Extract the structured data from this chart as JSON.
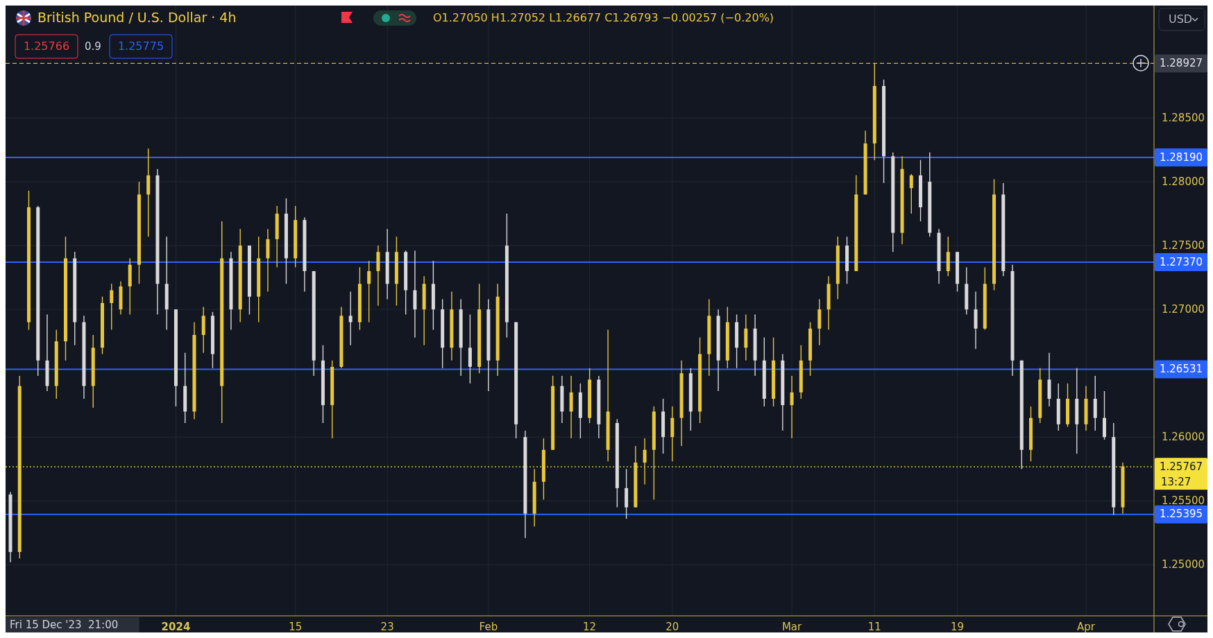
{
  "chart_data": {
    "type": "candlestick",
    "title": "British Pound / U.S. Dollar · 4h",
    "annotations": [
      "O1.27050 H1.27052 L1.26677 C1.26793 −0.00257 (−0.20%)",
      "1.25766",
      "0.9",
      "1.25775",
      "USD",
      "13:27",
      "Fri 15 Dec '23  21:00"
    ],
    "categories": [
      null,
      null,
      null,
      null,
      null,
      null,
      null,
      null,
      null,
      null,
      null,
      null,
      null,
      null,
      null,
      null,
      null,
      null,
      "2024",
      null,
      null,
      null,
      null,
      null,
      null,
      null,
      null,
      null,
      null,
      null,
      null,
      "15",
      null,
      null,
      null,
      null,
      null,
      null,
      null,
      null,
      null,
      "23",
      null,
      null,
      null,
      null,
      null,
      null,
      null,
      null,
      null,
      null,
      "Feb",
      null,
      null,
      null,
      null,
      null,
      null,
      null,
      null,
      null,
      null,
      "12",
      null,
      null,
      null,
      null,
      null,
      null,
      null,
      null,
      "20",
      null,
      null,
      null,
      null,
      null,
      null,
      null,
      null,
      null,
      null,
      null,
      null,
      "Mar",
      null,
      null,
      null,
      null,
      null,
      null,
      null,
      null,
      "11",
      null,
      null,
      null,
      null,
      null,
      null,
      null,
      null,
      "19",
      null,
      null,
      null,
      null,
      null,
      null,
      null,
      null,
      null,
      null,
      null,
      null,
      null,
      "Apr",
      null,
      null,
      null,
      null
    ],
    "ohlc": [
      [
        1.2555,
        1.2557,
        1.2502,
        1.251
      ],
      [
        1.251,
        1.2648,
        1.2505,
        1.264
      ],
      [
        1.269,
        1.2793,
        1.2684,
        1.278
      ],
      [
        1.278,
        1.2781,
        1.2648,
        1.266
      ],
      [
        1.266,
        1.2696,
        1.2636,
        1.264
      ],
      [
        1.264,
        1.2684,
        1.263,
        1.2675
      ],
      [
        1.2675,
        1.2757,
        1.266,
        1.274
      ],
      [
        1.274,
        1.2745,
        1.2672,
        1.269
      ],
      [
        1.269,
        1.2695,
        1.263,
        1.264
      ],
      [
        1.264,
        1.268,
        1.2623,
        1.267
      ],
      [
        1.267,
        1.271,
        1.2665,
        1.2705
      ],
      [
        1.2705,
        1.272,
        1.2684,
        1.2715
      ],
      [
        1.27,
        1.2722,
        1.2696,
        1.2718
      ],
      [
        1.2718,
        1.274,
        1.2696,
        1.2735
      ],
      [
        1.2735,
        1.28,
        1.272,
        1.279
      ],
      [
        1.279,
        1.2826,
        1.2757,
        1.2805
      ],
      [
        1.2805,
        1.281,
        1.2696,
        1.272
      ],
      [
        1.272,
        1.2757,
        1.2684,
        1.27
      ],
      [
        1.27,
        1.27,
        1.2624,
        1.264
      ],
      [
        1.264,
        1.2666,
        1.2611,
        1.262
      ],
      [
        1.262,
        1.269,
        1.2614,
        1.268
      ],
      [
        1.268,
        1.2702,
        1.2666,
        1.2695
      ],
      [
        1.2695,
        1.2698,
        1.2654,
        1.2665
      ],
      [
        1.264,
        1.2769,
        1.2611,
        1.274
      ],
      [
        1.274,
        1.2745,
        1.2684,
        1.27
      ],
      [
        1.27,
        1.2763,
        1.269,
        1.275
      ],
      [
        1.275,
        1.275,
        1.2696,
        1.271
      ],
      [
        1.271,
        1.2757,
        1.269,
        1.274
      ],
      [
        1.274,
        1.2763,
        1.2714,
        1.2755
      ],
      [
        1.2755,
        1.2781,
        1.2733,
        1.2775
      ],
      [
        1.2775,
        1.2787,
        1.272,
        1.274
      ],
      [
        1.274,
        1.2781,
        1.2733,
        1.277
      ],
      [
        1.277,
        1.2772,
        1.2714,
        1.273
      ],
      [
        1.273,
        1.273,
        1.2648,
        1.266
      ],
      [
        1.266,
        1.2672,
        1.2611,
        1.2625
      ],
      [
        1.2625,
        1.266,
        1.2599,
        1.2655
      ],
      [
        1.2655,
        1.2702,
        1.2654,
        1.2695
      ],
      [
        1.2695,
        1.2714,
        1.2672,
        1.269
      ],
      [
        1.269,
        1.2733,
        1.2684,
        1.272
      ],
      [
        1.272,
        1.2738,
        1.269,
        1.273
      ],
      [
        1.273,
        1.275,
        1.2703,
        1.2745
      ],
      [
        1.2745,
        1.2763,
        1.2708,
        1.272
      ],
      [
        1.272,
        1.2757,
        1.2703,
        1.2745
      ],
      [
        1.2745,
        1.2746,
        1.2696,
        1.2715
      ],
      [
        1.2715,
        1.2746,
        1.2678,
        1.27
      ],
      [
        1.27,
        1.2726,
        1.2672,
        1.272
      ],
      [
        1.272,
        1.2738,
        1.2684,
        1.27
      ],
      [
        1.27,
        1.2708,
        1.2654,
        1.267
      ],
      [
        1.267,
        1.2714,
        1.266,
        1.27
      ],
      [
        1.27,
        1.2708,
        1.2648,
        1.267
      ],
      [
        1.267,
        1.2696,
        1.2642,
        1.2655
      ],
      [
        1.2655,
        1.272,
        1.265,
        1.27
      ],
      [
        1.27,
        1.2708,
        1.2636,
        1.266
      ],
      [
        1.266,
        1.272,
        1.2648,
        1.271
      ],
      [
        1.275,
        1.2775,
        1.2678,
        1.269
      ],
      [
        1.269,
        1.269,
        1.2599,
        1.261
      ],
      [
        1.26,
        1.2605,
        1.2521,
        1.254
      ],
      [
        1.254,
        1.2575,
        1.253,
        1.2565
      ],
      [
        1.2565,
        1.2599,
        1.2551,
        1.259
      ],
      [
        1.259,
        1.2648,
        1.259,
        1.264
      ],
      [
        1.264,
        1.2648,
        1.2611,
        1.262
      ],
      [
        1.262,
        1.2648,
        1.2599,
        1.2635
      ],
      [
        1.2635,
        1.2642,
        1.2599,
        1.2615
      ],
      [
        1.2615,
        1.2654,
        1.2611,
        1.2645
      ],
      [
        1.2645,
        1.2648,
        1.2599,
        1.261
      ],
      [
        1.259,
        1.2684,
        1.2581,
        1.262
      ],
      [
        1.2611,
        1.2614,
        1.2545,
        1.256
      ],
      [
        1.256,
        1.2575,
        1.2536,
        1.2545
      ],
      [
        1.2545,
        1.2593,
        1.2545,
        1.258
      ],
      [
        1.258,
        1.2599,
        1.2563,
        1.259
      ],
      [
        1.259,
        1.2624,
        1.2551,
        1.262
      ],
      [
        1.262,
        1.263,
        1.2587,
        1.26
      ],
      [
        1.26,
        1.2624,
        1.2581,
        1.2615
      ],
      [
        1.2615,
        1.266,
        1.2593,
        1.265
      ],
      [
        1.265,
        1.2654,
        1.2605,
        1.262
      ],
      [
        1.262,
        1.2678,
        1.2611,
        1.2665
      ],
      [
        1.2665,
        1.2708,
        1.2648,
        1.2695
      ],
      [
        1.2695,
        1.27,
        1.2636,
        1.266
      ],
      [
        1.266,
        1.2702,
        1.2654,
        1.269
      ],
      [
        1.269,
        1.2696,
        1.2654,
        1.267
      ],
      [
        1.267,
        1.2696,
        1.266,
        1.2685
      ],
      [
        1.2685,
        1.2696,
        1.2648,
        1.266
      ],
      [
        1.266,
        1.2678,
        1.2624,
        1.263
      ],
      [
        1.263,
        1.2678,
        1.2624,
        1.266
      ],
      [
        1.266,
        1.2665,
        1.2605,
        1.2625
      ],
      [
        1.2625,
        1.2648,
        1.2599,
        1.2635
      ],
      [
        1.2635,
        1.2672,
        1.263,
        1.266
      ],
      [
        1.266,
        1.269,
        1.2648,
        1.2685
      ],
      [
        1.2685,
        1.2708,
        1.2672,
        1.27
      ],
      [
        1.27,
        1.2726,
        1.2684,
        1.272
      ],
      [
        1.272,
        1.2757,
        1.2708,
        1.275
      ],
      [
        1.275,
        1.2757,
        1.272,
        1.273
      ],
      [
        1.273,
        1.2805,
        1.273,
        1.279
      ],
      [
        1.279,
        1.284,
        1.279,
        1.283
      ],
      [
        1.283,
        1.2893,
        1.2817,
        1.2875
      ],
      [
        1.2875,
        1.288,
        1.2799,
        1.282
      ],
      [
        1.282,
        1.2823,
        1.2745,
        1.276
      ],
      [
        1.276,
        1.282,
        1.2751,
        1.281
      ],
      [
        1.2795,
        1.2806,
        1.2775,
        1.2805
      ],
      [
        1.2805,
        1.2817,
        1.2769,
        1.278
      ],
      [
        1.28,
        1.2823,
        1.2757,
        1.276
      ],
      [
        1.276,
        1.2763,
        1.272,
        1.273
      ],
      [
        1.273,
        1.2757,
        1.2726,
        1.2745
      ],
      [
        1.2745,
        1.2745,
        1.2714,
        1.272
      ],
      [
        1.272,
        1.2733,
        1.2696,
        1.27
      ],
      [
        1.27,
        1.2714,
        1.2669,
        1.2685
      ],
      [
        1.2685,
        1.2733,
        1.2684,
        1.272
      ],
      [
        1.272,
        1.2802,
        1.2715,
        1.279
      ],
      [
        1.279,
        1.2799,
        1.2726,
        1.273
      ],
      [
        1.273,
        1.2735,
        1.2648,
        1.266
      ],
      [
        1.266,
        1.266,
        1.2575,
        1.259
      ],
      [
        1.259,
        1.2624,
        1.2581,
        1.2615
      ],
      [
        1.2615,
        1.2654,
        1.2611,
        1.2645
      ],
      [
        1.2645,
        1.2666,
        1.2624,
        1.263
      ],
      [
        1.263,
        1.2642,
        1.2605,
        1.261
      ],
      [
        1.261,
        1.2642,
        1.2608,
        1.263
      ],
      [
        1.263,
        1.2654,
        1.2587,
        1.261
      ],
      [
        1.261,
        1.264,
        1.2605,
        1.263
      ],
      [
        1.263,
        1.2648,
        1.2605,
        1.2615
      ],
      [
        1.2615,
        1.2636,
        1.2598,
        1.26
      ],
      [
        1.26,
        1.2611,
        1.2539,
        1.2545
      ],
      [
        1.2545,
        1.258,
        1.254,
        1.2577
      ]
    ],
    "colors": [
      "#d9d9d9",
      "#e8c83a",
      "#e8c83a",
      "#d9d9d9",
      "#d9d9d9",
      "#e8c83a",
      "#e8c83a",
      "#d9d9d9",
      "#d9d9d9",
      "#e8c83a",
      "#e8c83a",
      "#e8c83a",
      "#e8c83a",
      "#e8c83a",
      "#e8c83a",
      "#e8c83a",
      "#d9d9d9",
      "#d9d9d9",
      "#d9d9d9",
      "#d9d9d9",
      "#e8c83a",
      "#e8c83a",
      "#d9d9d9",
      "#e8c83a",
      "#d9d9d9",
      "#e8c83a",
      "#d9d9d9",
      "#e8c83a",
      "#e8c83a",
      "#e8c83a",
      "#d9d9d9",
      "#e8c83a",
      "#d9d9d9",
      "#d9d9d9",
      "#d9d9d9",
      "#e8c83a",
      "#e8c83a",
      "#d9d9d9",
      "#e8c83a",
      "#e8c83a",
      "#e8c83a",
      "#d9d9d9",
      "#e8c83a",
      "#d9d9d9",
      "#d9d9d9",
      "#e8c83a",
      "#d9d9d9",
      "#d9d9d9",
      "#e8c83a",
      "#d9d9d9",
      "#d9d9d9",
      "#e8c83a",
      "#d9d9d9",
      "#e8c83a",
      "#d9d9d9",
      "#d9d9d9",
      "#d9d9d9",
      "#e8c83a",
      "#e8c83a",
      "#e8c83a",
      "#d9d9d9",
      "#e8c83a",
      "#d9d9d9",
      "#e8c83a",
      "#d9d9d9",
      "#e8c83a",
      "#d9d9d9",
      "#d9d9d9",
      "#e8c83a",
      "#e8c83a",
      "#e8c83a",
      "#d9d9d9",
      "#e8c83a",
      "#e8c83a",
      "#d9d9d9",
      "#e8c83a",
      "#e8c83a",
      "#d9d9d9",
      "#e8c83a",
      "#d9d9d9",
      "#e8c83a",
      "#d9d9d9",
      "#d9d9d9",
      "#e8c83a",
      "#d9d9d9",
      "#e8c83a",
      "#e8c83a",
      "#e8c83a",
      "#e8c83a",
      "#e8c83a",
      "#e8c83a",
      "#d9d9d9",
      "#e8c83a",
      "#e8c83a",
      "#e8c83a",
      "#d9d9d9",
      "#d9d9d9",
      "#e8c83a",
      "#e8c83a",
      "#d9d9d9",
      "#d9d9d9",
      "#d9d9d9",
      "#e8c83a",
      "#d9d9d9",
      "#d9d9d9",
      "#d9d9d9",
      "#e8c83a",
      "#e8c83a",
      "#d9d9d9",
      "#d9d9d9",
      "#d9d9d9",
      "#e8c83a",
      "#e8c83a",
      "#d9d9d9",
      "#d9d9d9",
      "#e8c83a",
      "#d9d9d9",
      "#e8c83a",
      "#d9d9d9",
      "#d9d9d9",
      "#d9d9d9",
      "#e8c83a"
    ],
    "ylim": [
      1.246,
      1.2938
    ],
    "yticks": [
      {
        "value": 1.25,
        "label": "1.25000"
      },
      {
        "value": 1.255,
        "label": "1.25500"
      },
      {
        "value": 1.26,
        "label": "1.26000"
      },
      {
        "value": 1.27,
        "label": "1.27000"
      },
      {
        "value": 1.275,
        "label": "1.27500"
      },
      {
        "value": 1.28,
        "label": "1.28000"
      },
      {
        "value": 1.285,
        "label": "1.28500"
      }
    ],
    "grid": true,
    "ref_lines": [
      {
        "axis": "y",
        "value": 1.28927,
        "label": "1.28927",
        "color": "#d4b93c",
        "line_style": "dashed"
      },
      {
        "axis": "y",
        "value": 1.2819,
        "label": "1.28190",
        "color": "#2962ff",
        "line_style": "solid"
      },
      {
        "axis": "y",
        "value": 1.2737,
        "label": "1.27370",
        "color": "#2962ff",
        "line_style": "solid"
      },
      {
        "axis": "y",
        "value": 1.26531,
        "label": "1.26531",
        "color": "#2962ff",
        "line_style": "solid"
      },
      {
        "axis": "y",
        "value": 1.25767,
        "label": "1.25767",
        "color": "#f5e13c",
        "line_style": "dotted"
      },
      {
        "axis": "y",
        "value": 1.25395,
        "label": "1.25395",
        "color": "#2962ff",
        "line_style": "solid"
      }
    ]
  }
}
